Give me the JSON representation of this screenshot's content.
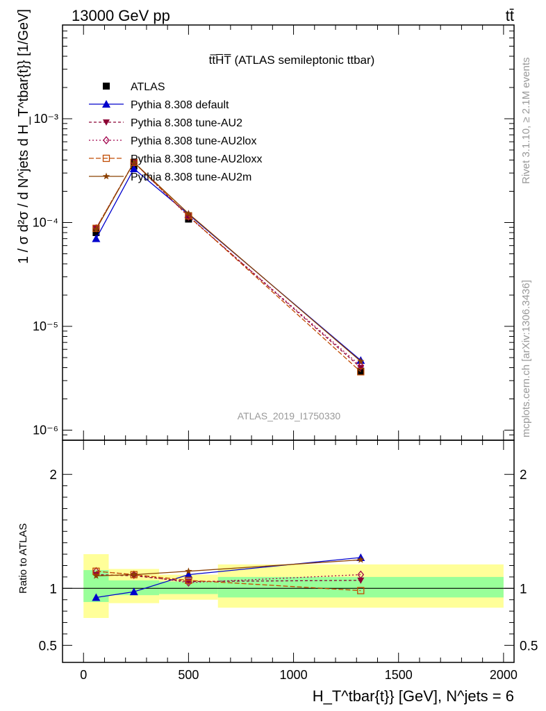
{
  "header": {
    "left": "13000 GeV pp",
    "right": "tt̄"
  },
  "side_labels": {
    "rivet": "Rivet 3.1.10, ≥ 2.1M events",
    "mcplots": "mcplots.cern.ch [arXiv:1306.3436]"
  },
  "colors": {
    "atlas": "#000000",
    "default": "#0000cc",
    "au2": "#8b0033",
    "au2lox": "#a0004a",
    "au2loxx": "#c04a00",
    "au2m": "#8b4000",
    "band_inner": "#99ff99",
    "band_outer": "#ffff99"
  },
  "chart_data": [
    {
      "type": "line",
      "title": "tt̅H̅T̅ (ATLAS semileptonic ttbar)",
      "watermark": "ATLAS_2019_I1750330",
      "ylabel": "1 / σ d²σ / d N^jets d H_T^tbar{t}} [1/GeV]",
      "xlabel": "H_T^tbar{t}} [GeV], N^jets = 6",
      "yscale": "log",
      "ylim": [
        8e-07,
        0.008
      ],
      "xlim": [
        -100,
        2050
      ],
      "y_ticks": [
        "10⁻⁶",
        "10⁻⁵",
        "10⁻⁴",
        "10⁻³"
      ],
      "legend_position": "top-left",
      "series": [
        {
          "name": "ATLAS",
          "key": "atlas",
          "x": [
            60,
            240,
            500,
            1320
          ],
          "y": [
            8e-05,
            0.00035,
            0.000108,
            3.7e-06
          ]
        },
        {
          "name": "Pythia 8.308 default",
          "key": "default",
          "x": [
            60,
            240,
            500,
            1320
          ],
          "y": [
            7e-05,
            0.00033,
            0.00012,
            4.7e-06
          ]
        },
        {
          "name": "Pythia 8.308 tune-AU2",
          "key": "au2",
          "x": [
            60,
            240,
            500,
            1320
          ],
          "y": [
            8.8e-05,
            0.00038,
            0.000115,
            4e-06
          ]
        },
        {
          "name": "Pythia 8.308 tune-AU2lox",
          "key": "au2lox",
          "x": [
            60,
            240,
            500,
            1320
          ],
          "y": [
            8.8e-05,
            0.00038,
            0.000114,
            4.15e-06
          ]
        },
        {
          "name": "Pythia 8.308 tune-AU2loxx",
          "key": "au2loxx",
          "x": [
            60,
            240,
            500,
            1320
          ],
          "y": [
            8.8e-05,
            0.00038,
            0.000116,
            3.65e-06
          ]
        },
        {
          "name": "Pythia 8.308 tune-AU2m",
          "key": "au2m",
          "x": [
            60,
            240,
            500,
            1320
          ],
          "y": [
            8.6e-05,
            0.00038,
            0.000122,
            4.6e-06
          ]
        }
      ]
    },
    {
      "type": "line",
      "ylabel": "Ratio to ATLAS",
      "ylim": [
        0.35,
        2.3
      ],
      "xlim": [
        -100,
        2050
      ],
      "y_ticks": [
        0.5,
        1,
        2
      ],
      "x_ticks": [
        0,
        500,
        1000,
        1500,
        2000
      ],
      "bands": [
        {
          "x0": 0,
          "x1": 120,
          "inner": [
            0.88,
            1.16
          ],
          "outer": [
            0.74,
            1.3
          ]
        },
        {
          "x0": 120,
          "x1": 360,
          "inner": [
            0.94,
            1.07
          ],
          "outer": [
            0.87,
            1.17
          ]
        },
        {
          "x0": 360,
          "x1": 640,
          "inner": [
            0.95,
            1.06
          ],
          "outer": [
            0.9,
            1.12
          ]
        },
        {
          "x0": 640,
          "x1": 2000,
          "inner": [
            0.92,
            1.1
          ],
          "outer": [
            0.83,
            1.21
          ]
        }
      ],
      "series": [
        {
          "name": "Pythia 8.308 default",
          "key": "default",
          "x": [
            60,
            240,
            500,
            1320
          ],
          "y": [
            0.92,
            0.97,
            1.12,
            1.27
          ]
        },
        {
          "name": "Pythia 8.308 tune-AU2",
          "key": "au2",
          "x": [
            60,
            240,
            500,
            1320
          ],
          "y": [
            1.12,
            1.11,
            1.06,
            1.07
          ]
        },
        {
          "name": "Pythia 8.308 tune-AU2lox",
          "key": "au2lox",
          "x": [
            60,
            240,
            500,
            1320
          ],
          "y": [
            1.15,
            1.12,
            1.05,
            1.12
          ]
        },
        {
          "name": "Pythia 8.308 tune-AU2loxx",
          "key": "au2loxx",
          "x": [
            60,
            240,
            500,
            1320
          ],
          "y": [
            1.15,
            1.12,
            1.07,
            0.98
          ]
        },
        {
          "name": "Pythia 8.308 tune-AU2m",
          "key": "au2m",
          "x": [
            60,
            240,
            500,
            1320
          ],
          "y": [
            1.11,
            1.12,
            1.15,
            1.25
          ]
        }
      ]
    }
  ]
}
